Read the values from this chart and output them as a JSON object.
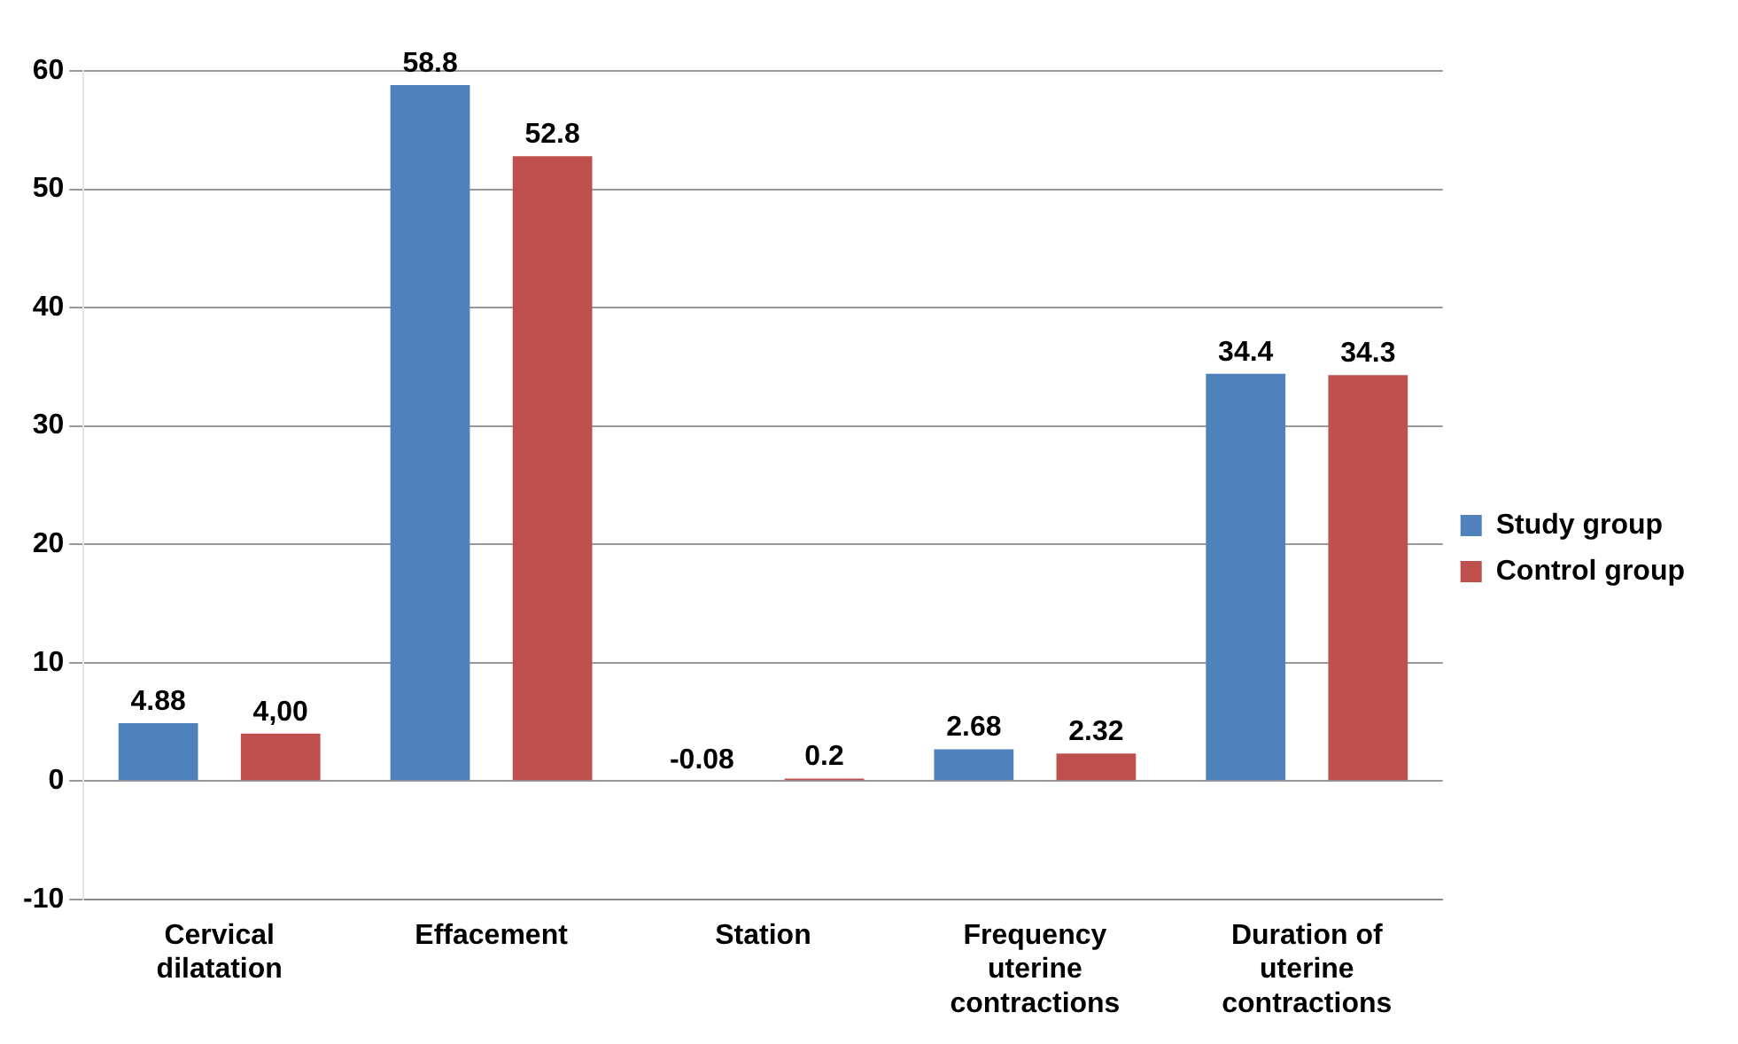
{
  "chart_data": {
    "type": "bar",
    "categories": [
      "Cervical dilatation",
      "Effacement",
      "Station",
      "Frequency uterine contractions",
      "Duration of uterine contractions"
    ],
    "series": [
      {
        "name": "Study group",
        "color": "#4f81bd",
        "values": [
          4.88,
          58.8,
          -0.08,
          2.68,
          34.4
        ],
        "value_labels": [
          "4.88",
          "58.8",
          "-0.08",
          "2.68",
          "34.4"
        ]
      },
      {
        "name": "Control group",
        "color": "#c0504d",
        "values": [
          4.0,
          52.8,
          0.2,
          2.32,
          34.3
        ],
        "value_labels": [
          "4,00",
          "52.8",
          "0.2",
          "2.32",
          "34.3"
        ]
      }
    ],
    "ylim": [
      -10,
      60
    ],
    "yticks": [
      -10,
      0,
      10,
      20,
      30,
      40,
      50,
      60
    ],
    "grid": "y",
    "legend": "right"
  }
}
